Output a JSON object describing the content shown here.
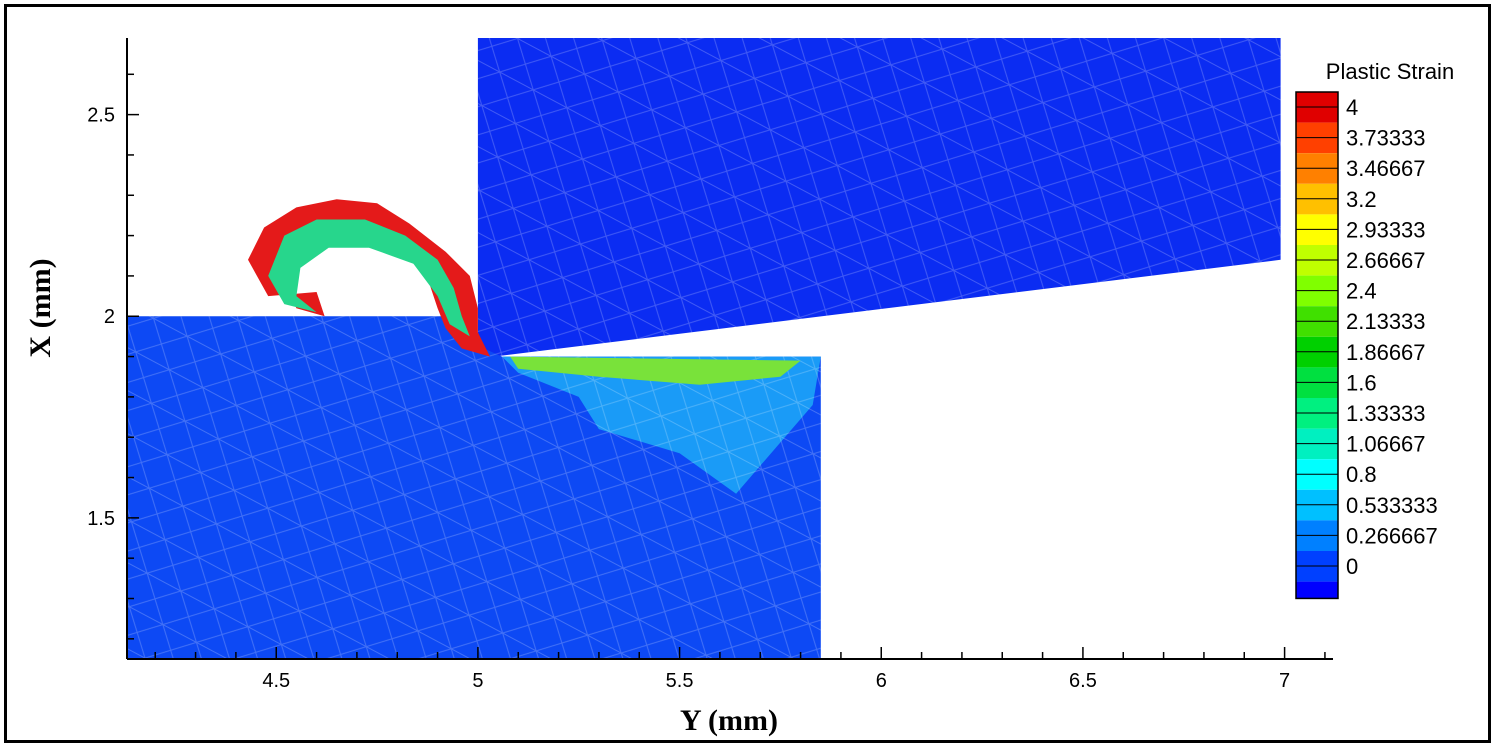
{
  "chart_data": {
    "type": "heatmap",
    "xlabel": "Y (mm)",
    "ylabel": "X (mm)",
    "xlim": [
      4.13,
      7.12
    ],
    "ylim": [
      1.15,
      2.69
    ],
    "x_ticks": [
      {
        "value": 4.5,
        "label": "4.5"
      },
      {
        "value": 5,
        "label": "5"
      },
      {
        "value": 5.5,
        "label": "5.5"
      },
      {
        "value": 6,
        "label": "6"
      },
      {
        "value": 6.5,
        "label": "6.5"
      },
      {
        "value": 7,
        "label": "7"
      }
    ],
    "y_ticks": [
      {
        "value": 1.5,
        "label": "1.5"
      },
      {
        "value": 2,
        "label": "2"
      },
      {
        "value": 2.5,
        "label": "2.5"
      }
    ],
    "legend": {
      "title": "Plastic Strain",
      "levels": [
        {
          "value": 4,
          "label": "4",
          "color": "#e00000"
        },
        {
          "value": 3.73333,
          "label": "3.73333",
          "color": "#ff4000"
        },
        {
          "value": 3.46667,
          "label": "3.46667",
          "color": "#ff8000"
        },
        {
          "value": 3.2,
          "label": "3.2",
          "color": "#ffc000"
        },
        {
          "value": 2.93333,
          "label": "2.93333",
          "color": "#ffff00"
        },
        {
          "value": 2.66667,
          "label": "2.66667",
          "color": "#c0ff00"
        },
        {
          "value": 2.4,
          "label": "2.4",
          "color": "#80ff00"
        },
        {
          "value": 2.13333,
          "label": "2.13333",
          "color": "#40e000"
        },
        {
          "value": 1.86667,
          "label": "1.86667",
          "color": "#00d000"
        },
        {
          "value": 1.6,
          "label": "1.6",
          "color": "#00e040"
        },
        {
          "value": 1.33333,
          "label": "1.33333",
          "color": "#00f080"
        },
        {
          "value": 1.06667,
          "label": "1.06667",
          "color": "#00f0c0"
        },
        {
          "value": 0.8,
          "label": "0.8",
          "color": "#00ffff"
        },
        {
          "value": 0.533333,
          "label": "0.533333",
          "color": "#00c0ff"
        },
        {
          "value": 0.266667,
          "label": "0.266667",
          "color": "#0080ff"
        },
        {
          "value": 0,
          "label": "0",
          "color": "#0040ff"
        }
      ],
      "bottom_color": "#0000ff"
    },
    "regions": [
      {
        "name": "tool",
        "color": "#0b2cf2",
        "points": [
          [
            5.0,
            2.69
          ],
          [
            6.99,
            2.69
          ],
          [
            6.99,
            2.14
          ],
          [
            5.04,
            1.9
          ],
          [
            5.0,
            1.93
          ]
        ]
      },
      {
        "name": "workpiece",
        "color": "#0d49f4",
        "points": [
          [
            4.13,
            1.15
          ],
          [
            5.85,
            1.15
          ],
          [
            5.85,
            1.9
          ],
          [
            5.06,
            1.9
          ],
          [
            4.97,
            1.94
          ],
          [
            4.93,
            2.0
          ],
          [
            4.13,
            2.0
          ]
        ]
      },
      {
        "name": "affected-zone",
        "color": "#1a9bf7",
        "points": [
          [
            5.06,
            1.9
          ],
          [
            5.85,
            1.9
          ],
          [
            5.83,
            1.78
          ],
          [
            5.64,
            1.56
          ],
          [
            5.5,
            1.66
          ],
          [
            5.3,
            1.72
          ],
          [
            5.25,
            1.8
          ],
          [
            5.1,
            1.86
          ]
        ]
      },
      {
        "name": "chip-surface-band",
        "color": "#79e23a",
        "points": [
          [
            5.08,
            1.9
          ],
          [
            5.8,
            1.89
          ],
          [
            5.75,
            1.85
          ],
          [
            5.55,
            1.83
          ],
          [
            5.3,
            1.85
          ],
          [
            5.1,
            1.87
          ]
        ]
      },
      {
        "name": "chip-curl-outer",
        "color": "#e41a1a",
        "points": [
          [
            4.43,
            2.14
          ],
          [
            4.47,
            2.22
          ],
          [
            4.55,
            2.27
          ],
          [
            4.65,
            2.29
          ],
          [
            4.75,
            2.28
          ],
          [
            4.83,
            2.23
          ],
          [
            4.92,
            2.16
          ],
          [
            4.98,
            2.1
          ],
          [
            5.0,
            2.02
          ],
          [
            5.0,
            1.96
          ],
          [
            5.03,
            1.9
          ],
          [
            4.96,
            1.92
          ],
          [
            4.92,
            1.97
          ],
          [
            4.9,
            2.02
          ],
          [
            4.88,
            2.08
          ],
          [
            4.82,
            2.16
          ],
          [
            4.72,
            2.2
          ],
          [
            4.63,
            2.2
          ],
          [
            4.55,
            2.16
          ],
          [
            4.52,
            2.08
          ],
          [
            4.55,
            2.02
          ],
          [
            4.62,
            2.0
          ],
          [
            4.6,
            2.06
          ],
          [
            4.48,
            2.05
          ]
        ]
      },
      {
        "name": "chip-curl-inner",
        "color": "#27d68c",
        "points": [
          [
            4.48,
            2.1
          ],
          [
            4.52,
            2.2
          ],
          [
            4.6,
            2.24
          ],
          [
            4.72,
            2.24
          ],
          [
            4.82,
            2.2
          ],
          [
            4.9,
            2.14
          ],
          [
            4.94,
            2.07
          ],
          [
            4.96,
            2.0
          ],
          [
            4.98,
            1.95
          ],
          [
            4.93,
            1.98
          ],
          [
            4.9,
            2.05
          ],
          [
            4.84,
            2.13
          ],
          [
            4.73,
            2.17
          ],
          [
            4.63,
            2.17
          ],
          [
            4.56,
            2.12
          ],
          [
            4.55,
            2.05
          ],
          [
            4.6,
            2.01
          ],
          [
            4.52,
            2.03
          ]
        ]
      }
    ]
  }
}
